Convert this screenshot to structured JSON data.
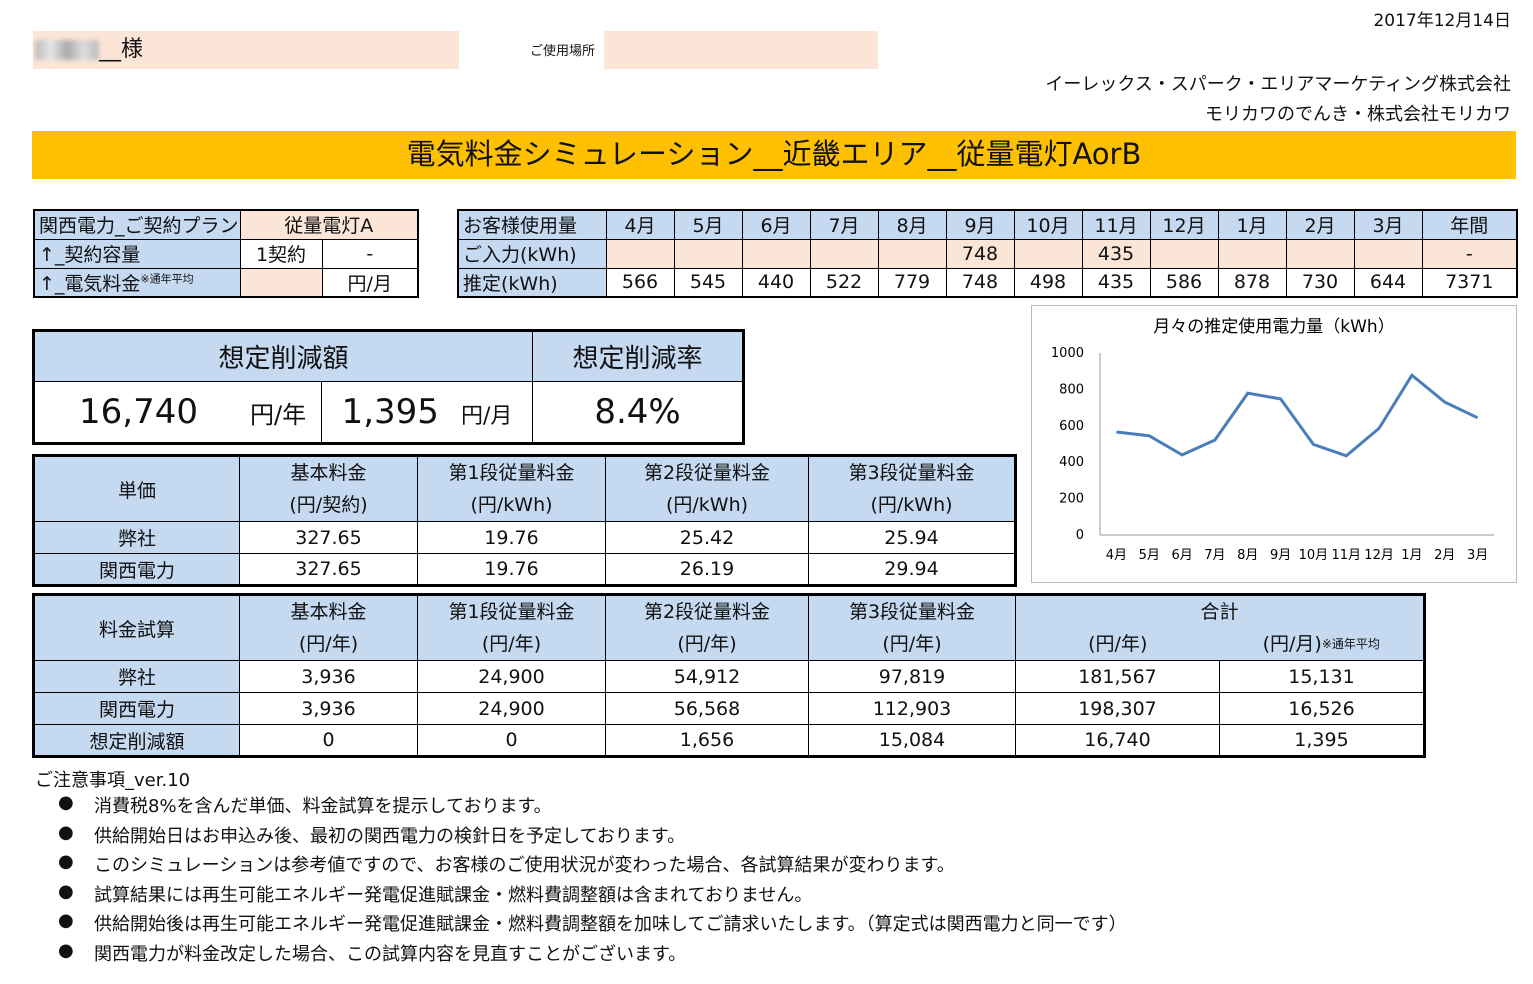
{
  "header": {
    "date": "2017年12月14日",
    "customer_suffix": "__様",
    "usage_location_label": "ご使用場所",
    "company1": "イーレックス・スパーク・エリアマーケティング株式会社",
    "company2": "モリカワのでんき・株式会社モリカワ",
    "title": "電気料金シミュレーション__近畿エリア__従量電灯AorB"
  },
  "contract": {
    "plan_label": "関西電力_ご契約プラン",
    "plan_value": "従量電灯A",
    "capacity_label": "↑_契約容量",
    "capacity_value": "1契約",
    "capacity_extra": "-",
    "fee_label": "↑_電気料金",
    "fee_note": "※通年平均",
    "fee_unit": "円/月"
  },
  "monthly": {
    "header_label": "お客様使用量",
    "months": [
      "4月",
      "5月",
      "6月",
      "7月",
      "8月",
      "9月",
      "10月",
      "11月",
      "12月",
      "1月",
      "2月",
      "3月",
      "年間"
    ],
    "input_label": "ご入力(kWh)",
    "input_values": [
      "",
      "",
      "",
      "",
      "",
      "748",
      "",
      "435",
      "",
      "",
      "",
      "",
      "-"
    ],
    "estimate_label": "推定(kWh)",
    "estimate_values": [
      "566",
      "545",
      "440",
      "522",
      "779",
      "748",
      "498",
      "435",
      "586",
      "878",
      "730",
      "644",
      "7371"
    ]
  },
  "savings": {
    "amount_label": "想定削減額",
    "rate_label": "想定削減率",
    "yearly": "16,740",
    "yearly_unit": "円/年",
    "monthly": "1,395",
    "monthly_unit": "円/月",
    "rate": "8.4%"
  },
  "unit_price": {
    "corner": "単価",
    "headers": [
      {
        "l1": "基本料金",
        "l2": "(円/契約)"
      },
      {
        "l1": "第1段従量料金",
        "l2": "(円/kWh)"
      },
      {
        "l1": "第2段従量料金",
        "l2": "(円/kWh)"
      },
      {
        "l1": "第3段従量料金",
        "l2": "(円/kWh)"
      }
    ],
    "rows": [
      {
        "label": "弊社",
        "values": [
          "327.65",
          "19.76",
          "25.42",
          "25.94"
        ]
      },
      {
        "label": "関西電力",
        "values": [
          "327.65",
          "19.76",
          "26.19",
          "29.94"
        ]
      }
    ]
  },
  "trial": {
    "corner": "料金試算",
    "headers": [
      {
        "l1": "基本料金",
        "l2": "(円/年)"
      },
      {
        "l1": "第1段従量料金",
        "l2": "(円/年)"
      },
      {
        "l1": "第2段従量料金",
        "l2": "(円/年)"
      },
      {
        "l1": "第3段従量料金",
        "l2": "(円/年)"
      }
    ],
    "total_label": "合計",
    "total_year": "(円/年)",
    "total_month": "(円/月)",
    "total_note": "※通年平均",
    "rows": [
      {
        "label": "弊社",
        "values": [
          "3,936",
          "24,900",
          "54,912",
          "97,819",
          "181,567",
          "15,131"
        ]
      },
      {
        "label": "関西電力",
        "values": [
          "3,936",
          "24,900",
          "56,568",
          "112,903",
          "198,307",
          "16,526"
        ]
      },
      {
        "label": "想定削減額",
        "values": [
          "0",
          "0",
          "1,656",
          "15,084",
          "16,740",
          "1,395"
        ]
      }
    ]
  },
  "chart_data": {
    "type": "line",
    "title": "月々の推定使用電力量（kWh）",
    "categories": [
      "4月",
      "5月",
      "6月",
      "7月",
      "8月",
      "9月",
      "10月",
      "11月",
      "12月",
      "1月",
      "2月",
      "3月"
    ],
    "values": [
      566,
      545,
      440,
      522,
      779,
      748,
      498,
      435,
      586,
      878,
      730,
      644
    ],
    "yticks": [
      0,
      200,
      400,
      600,
      800,
      1000
    ],
    "ylim": [
      0,
      1000
    ],
    "color": "#4a7ebb",
    "grid": false
  },
  "notes": {
    "title": "ご注意事項_ver.10",
    "bullet": "●",
    "items": [
      "消費税8%を含んだ単価、料金試算を提示しております。",
      "供給開始日はお申込み後、最初の関西電力の検針日を予定しております。",
      "このシミュレーションは参考値ですので、お客様のご使用状況が変わった場合、各試算結果が変わります。",
      "試算結果には再生可能エネルギー発電促進賦課金・燃料費調整額は含まれておりません。",
      "供給開始後は再生可能エネルギー発電促進賦課金・燃料費調整額を加味してご請求いたします。（算定式は関西電力と同一です）",
      "関西電力が料金改定した場合、この試算内容を見直すことがございます。"
    ]
  }
}
